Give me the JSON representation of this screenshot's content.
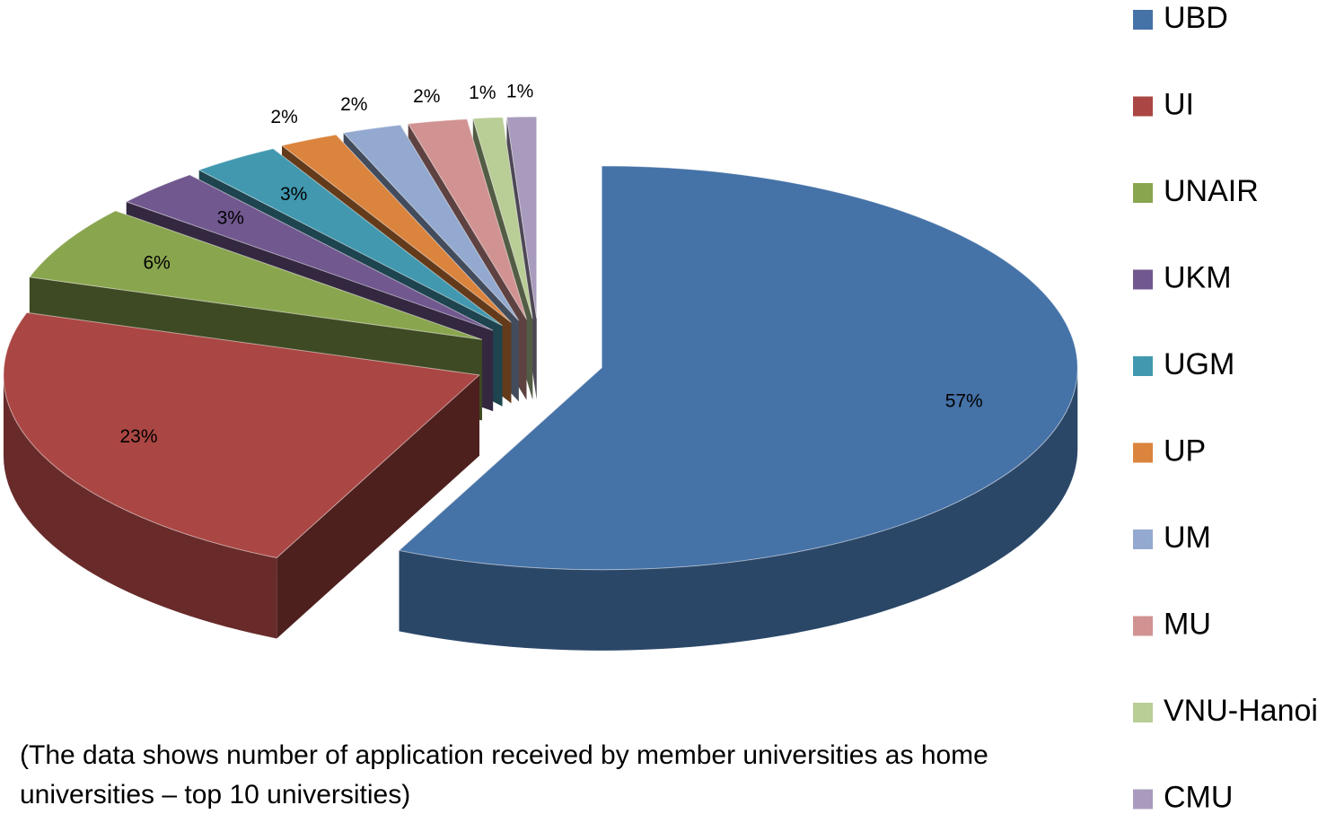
{
  "chart_data": {
    "type": "pie3d",
    "categories": [
      "UBD",
      "UI",
      "UNAIR",
      "UKM",
      "UGM",
      "UP",
      "UM",
      "MU",
      "VNU-Hanoi",
      "CMU"
    ],
    "values": [
      57,
      23,
      6,
      3,
      3,
      2,
      2,
      2,
      1,
      1
    ],
    "value_labels": [
      "57%",
      "23%",
      "6%",
      "3%",
      "3%",
      "2%",
      "2%",
      "2%",
      "1%",
      "1%"
    ],
    "colors": [
      "#4572a7",
      "#aa4643",
      "#89a54e",
      "#71588f",
      "#4198af",
      "#db843d",
      "#93a9cf",
      "#d19392",
      "#b9cd96",
      "#a99bbd"
    ],
    "legend": "right",
    "exploded": true,
    "caption": "(The data shows number of application received by member universities as home universities – top 10 universities)"
  }
}
